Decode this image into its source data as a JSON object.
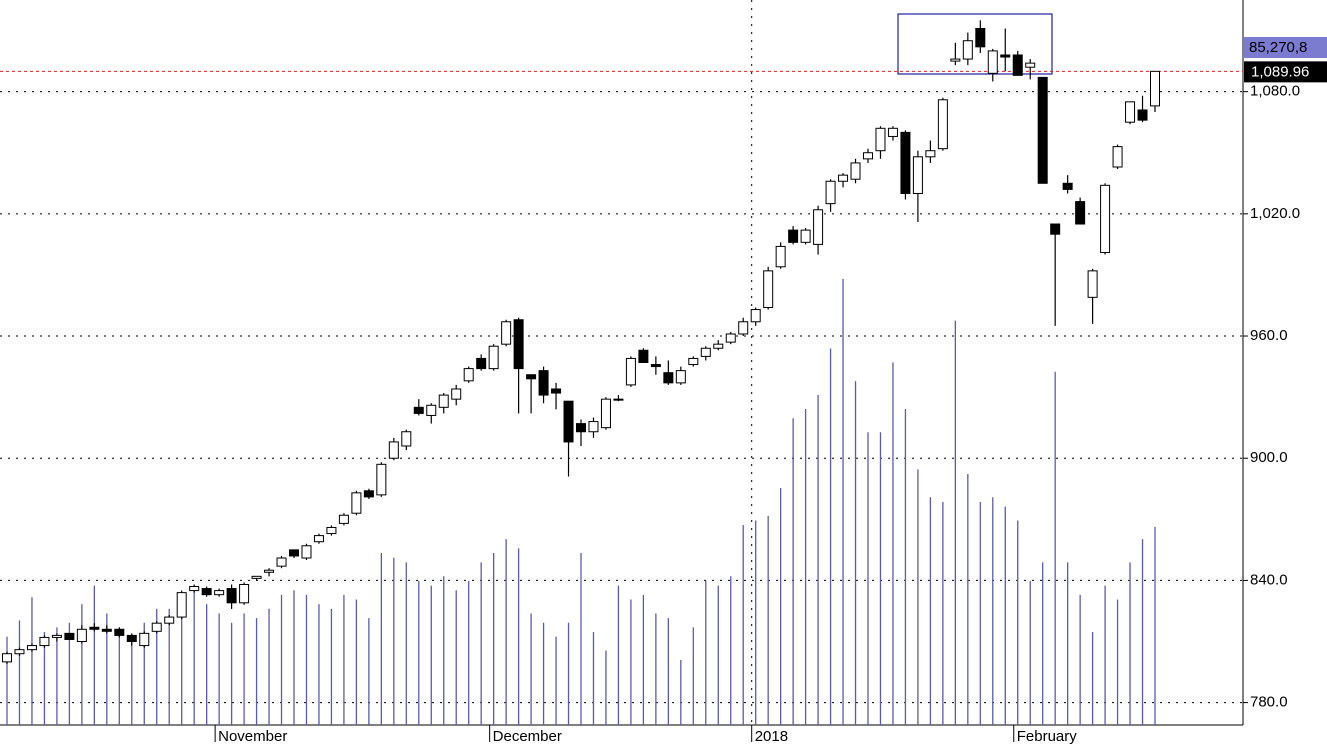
{
  "chart_data": {
    "type": "candlestick",
    "candle_fields": [
      "open",
      "high",
      "low",
      "close"
    ],
    "candles": [
      [
        800,
        805,
        799,
        804
      ],
      [
        804,
        807,
        803,
        806
      ],
      [
        806,
        809,
        805,
        808
      ],
      [
        808,
        813,
        807,
        812
      ],
      [
        812,
        814,
        810,
        813
      ],
      [
        814,
        814,
        811,
        811
      ],
      [
        810,
        818,
        809,
        816
      ],
      [
        817,
        819,
        815,
        816
      ],
      [
        816,
        818,
        814,
        815
      ],
      [
        816,
        817,
        812,
        813
      ],
      [
        813,
        814,
        808,
        810
      ],
      [
        808,
        815,
        807,
        814
      ],
      [
        815,
        820,
        814,
        819
      ],
      [
        819,
        823,
        818,
        822
      ],
      [
        822,
        835,
        821,
        834
      ],
      [
        835,
        838,
        834,
        837
      ],
      [
        836,
        837,
        832,
        833
      ],
      [
        833,
        836,
        832,
        835
      ],
      [
        836,
        838,
        826,
        829
      ],
      [
        829,
        839,
        828,
        838
      ],
      [
        841,
        842,
        840,
        842
      ],
      [
        844,
        846,
        842,
        845
      ],
      [
        847,
        852,
        846,
        851
      ],
      [
        855,
        855,
        851,
        852
      ],
      [
        851,
        858,
        850,
        857
      ],
      [
        859,
        863,
        858,
        862
      ],
      [
        863,
        867,
        862,
        866
      ],
      [
        868,
        873,
        867,
        872
      ],
      [
        873,
        884,
        872,
        883
      ],
      [
        884,
        885,
        880,
        881
      ],
      [
        882,
        898,
        881,
        897
      ],
      [
        900,
        910,
        899,
        908
      ],
      [
        906,
        914,
        904,
        913
      ],
      [
        925,
        929,
        921,
        922
      ],
      [
        921,
        927,
        917,
        926
      ],
      [
        925,
        932,
        922,
        931
      ],
      [
        929,
        936,
        926,
        934
      ],
      [
        938,
        945,
        937,
        944
      ],
      [
        949,
        951,
        943,
        944
      ],
      [
        944,
        956,
        943,
        955
      ],
      [
        956,
        968,
        955,
        967
      ],
      [
        968,
        969,
        922,
        944
      ],
      [
        941,
        941,
        922,
        939
      ],
      [
        943,
        945,
        927,
        931
      ],
      [
        934,
        937,
        924,
        932
      ],
      [
        928,
        928,
        891,
        908
      ],
      [
        917,
        919,
        906,
        913
      ],
      [
        913,
        920,
        910,
        918
      ],
      [
        915,
        930,
        914,
        929
      ],
      [
        929,
        931,
        928,
        929
      ],
      [
        936,
        950,
        935,
        949
      ],
      [
        953,
        954,
        947,
        947
      ],
      [
        946,
        950,
        941,
        945
      ],
      [
        942,
        948,
        936,
        937
      ],
      [
        937,
        945,
        936,
        943
      ],
      [
        946,
        950,
        945,
        949
      ],
      [
        950,
        955,
        948,
        954
      ],
      [
        954,
        958,
        953,
        956
      ],
      [
        957,
        962,
        956,
        961
      ],
      [
        961,
        969,
        960,
        967
      ],
      [
        967,
        974,
        965,
        973
      ],
      [
        974,
        994,
        973,
        992
      ],
      [
        994,
        1006,
        993,
        1004
      ],
      [
        1012,
        1014,
        1005,
        1006
      ],
      [
        1006,
        1013,
        1005,
        1012
      ],
      [
        1005,
        1024,
        1000,
        1022
      ],
      [
        1025,
        1037,
        1021,
        1036
      ],
      [
        1036,
        1040,
        1033,
        1039
      ],
      [
        1037,
        1047,
        1035,
        1045
      ],
      [
        1047,
        1052,
        1045,
        1050
      ],
      [
        1051,
        1063,
        1047,
        1062
      ],
      [
        1058,
        1063,
        1056,
        1062
      ],
      [
        1060,
        1061,
        1027,
        1030
      ],
      [
        1030,
        1051,
        1016,
        1048
      ],
      [
        1048,
        1056,
        1045,
        1051
      ],
      [
        1052,
        1077,
        1051,
        1076
      ],
      [
        1095,
        1104,
        1093,
        1096
      ],
      [
        1096,
        1109,
        1093,
        1105
      ],
      [
        1111,
        1115,
        1099,
        1102
      ],
      [
        1089,
        1101,
        1085,
        1100
      ],
      [
        1098,
        1111,
        1090,
        1097
      ],
      [
        1098,
        1100,
        1088,
        1088
      ],
      [
        1092,
        1096,
        1086,
        1094
      ],
      [
        1087,
        1087,
        1035,
        1035
      ],
      [
        1015,
        1015,
        965,
        1010
      ],
      [
        1035,
        1039,
        1030,
        1032
      ],
      [
        1026,
        1028,
        1015,
        1015
      ],
      [
        979,
        993,
        966,
        992
      ],
      [
        1001,
        1035,
        1000,
        1034
      ],
      [
        1043,
        1054,
        1042,
        1053
      ],
      [
        1065,
        1075,
        1064,
        1075
      ],
      [
        1071,
        1078,
        1065,
        1066
      ],
      [
        1073,
        1090,
        1070,
        1089.96
      ]
    ],
    "volume": {
      "color": "#5a5ab4",
      "axis": "y2",
      "values": [
        38,
        45,
        55,
        40,
        42,
        44,
        52,
        60,
        48,
        40,
        38,
        44,
        50,
        50,
        56,
        60,
        52,
        48,
        44,
        48,
        46,
        50,
        56,
        58,
        56,
        52,
        50,
        56,
        54,
        46,
        74,
        72,
        70,
        62,
        60,
        64,
        58,
        62,
        70,
        74,
        80,
        76,
        48,
        44,
        38,
        44,
        74,
        40,
        32,
        60,
        54,
        56,
        48,
        46,
        28,
        42,
        62,
        60,
        64,
        86,
        88,
        90,
        102,
        132,
        136,
        142,
        162,
        192,
        148,
        126,
        126,
        156,
        136,
        110,
        98,
        96,
        174,
        108,
        96,
        98,
        94,
        88,
        62,
        70,
        152,
        70,
        56,
        40,
        60,
        54,
        70,
        80,
        85.27
      ]
    },
    "categories": [
      null,
      null,
      null,
      null,
      null,
      null,
      null,
      null,
      null,
      null,
      null,
      null,
      null,
      null,
      null,
      null,
      null,
      "November",
      null,
      null,
      null,
      null,
      null,
      null,
      null,
      null,
      null,
      null,
      null,
      null,
      null,
      null,
      null,
      null,
      null,
      null,
      null,
      null,
      null,
      "December",
      null,
      null,
      null,
      null,
      null,
      null,
      null,
      null,
      null,
      null,
      null,
      null,
      null,
      null,
      null,
      null,
      null,
      null,
      null,
      null,
      "2018",
      null,
      null,
      null,
      null,
      null,
      null,
      null,
      null,
      null,
      null,
      null,
      null,
      null,
      null,
      null,
      null,
      null,
      null,
      null,
      null,
      "February",
      null,
      null,
      null,
      null,
      null,
      null,
      null,
      null,
      null,
      null,
      null
    ],
    "ylim": [
      769,
      1125
    ],
    "yticks": [
      {
        "value": 780,
        "label": "780.0"
      },
      {
        "value": 840,
        "label": "840.0"
      },
      {
        "value": 900,
        "label": "900.0"
      },
      {
        "value": 960,
        "label": "960.0"
      },
      {
        "value": 1020,
        "label": "1,020.0"
      },
      {
        "value": 1080,
        "label": "1,080.0"
      }
    ],
    "y2lim": [
      0,
      312
    ],
    "grid": true,
    "last_price": {
      "value": 1089.96,
      "label": "1,089.96",
      "color": "#e02020"
    },
    "volume_readout": "85,270,8"
  }
}
